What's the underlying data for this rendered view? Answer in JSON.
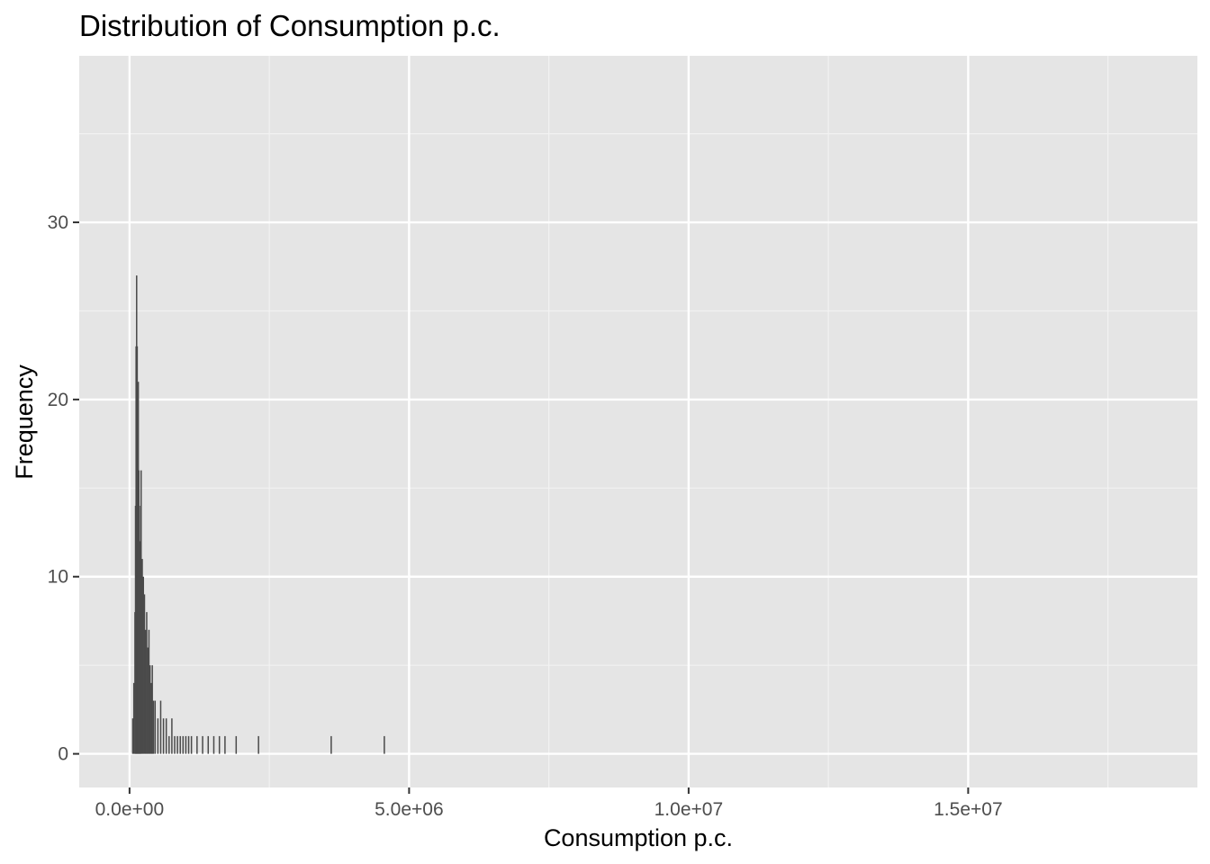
{
  "chart_data": {
    "type": "bar",
    "title": "Distribution of Consumption p.c.",
    "xlabel": "Consumption p.c.",
    "ylabel": "Frequency",
    "xlim": [
      -900000,
      19100000
    ],
    "ylim": [
      -1.9,
      39.4
    ],
    "x_ticks": [
      {
        "value": 0,
        "label": "0.0e+00"
      },
      {
        "value": 5000000,
        "label": "5.0e+06"
      },
      {
        "value": 10000000,
        "label": "1.0e+07"
      },
      {
        "value": 15000000,
        "label": "1.5e+07"
      }
    ],
    "y_ticks": [
      {
        "value": 0,
        "label": "0"
      },
      {
        "value": 10,
        "label": "10"
      },
      {
        "value": 20,
        "label": "20"
      },
      {
        "value": 30,
        "label": "30"
      }
    ],
    "grid": true,
    "bin_width": 10000,
    "x": [
      50000,
      70000,
      90000,
      100000,
      110000,
      120000,
      130000,
      140000,
      150000,
      160000,
      170000,
      180000,
      190000,
      200000,
      220000,
      240000,
      260000,
      280000,
      300000,
      320000,
      340000,
      360000,
      380000,
      400000,
      420000,
      450000,
      500000,
      550000,
      600000,
      650000,
      700000,
      750000,
      800000,
      850000,
      900000,
      950000,
      1000000,
      1050000,
      1100000,
      1200000,
      1300000,
      1400000,
      1500000,
      1600000,
      1700000,
      1900000,
      2300000,
      3600000,
      4550000
    ],
    "values": [
      2,
      4,
      8,
      14,
      23,
      27,
      23,
      18,
      21,
      16,
      14,
      10,
      12,
      16,
      11,
      10,
      9,
      7,
      8,
      6,
      7,
      5,
      4,
      5,
      3,
      3,
      2,
      3,
      2,
      2,
      1,
      2,
      1,
      1,
      1,
      1,
      1,
      1,
      1,
      1,
      1,
      1,
      1,
      1,
      1,
      1,
      1,
      1,
      1
    ]
  }
}
